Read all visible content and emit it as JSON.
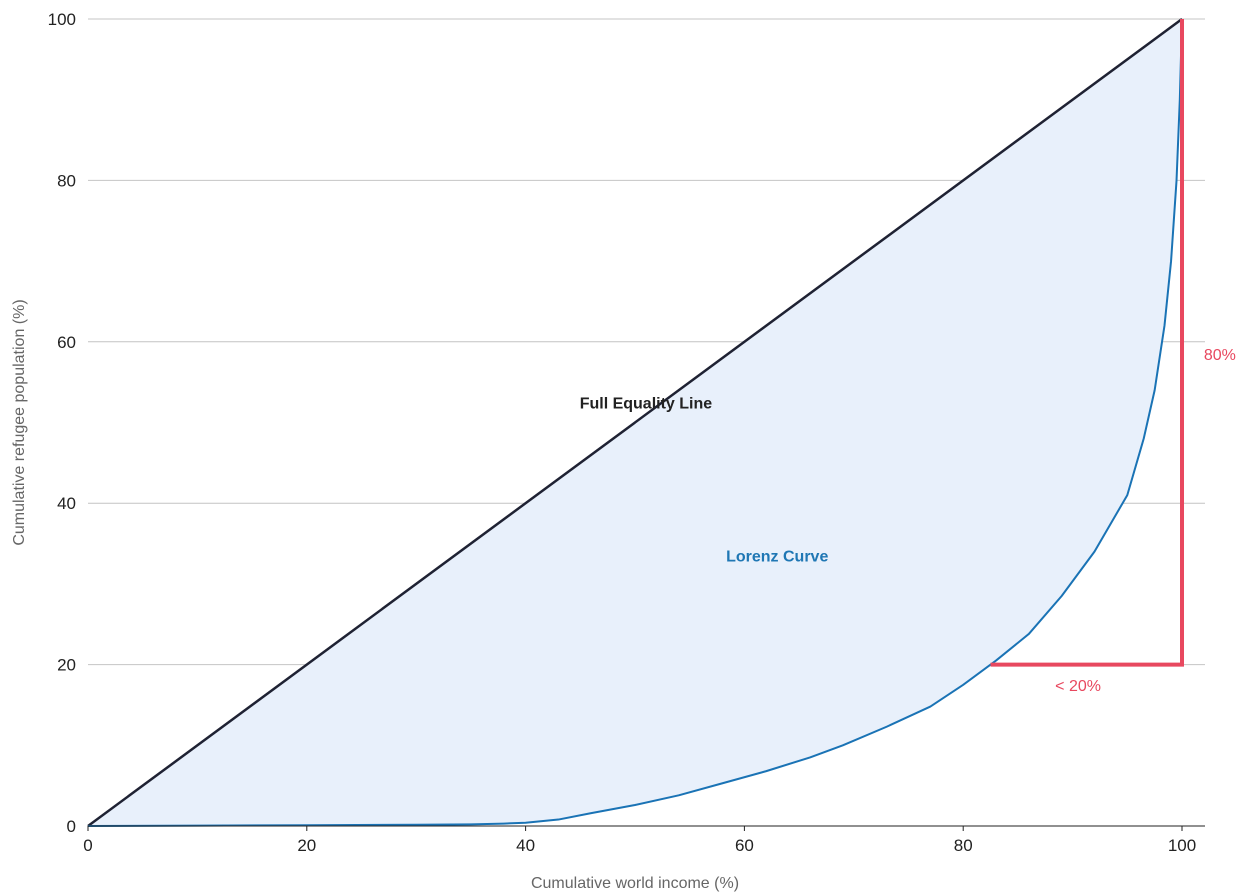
{
  "chart_data": {
    "type": "line",
    "xlabel": "Cumulative world income (%)",
    "ylabel": "Cumulative refugee population (%)",
    "xlim": [
      0,
      100
    ],
    "ylim": [
      0,
      100
    ],
    "x_ticks": [
      "0",
      "20",
      "40",
      "60",
      "80",
      "100"
    ],
    "y_ticks": [
      "0",
      "20",
      "40",
      "60",
      "80",
      "100"
    ],
    "grid": "horizontal",
    "series": [
      {
        "color": "#1f2233",
        "points": [
          [
            0,
            0
          ],
          [
            100,
            100
          ]
        ]
      },
      {
        "color": "#1a73b5",
        "fill": "#e8f0fb",
        "points": [
          [
            0,
            0
          ],
          [
            10,
            0.05
          ],
          [
            20,
            0.1
          ],
          [
            30,
            0.15
          ],
          [
            35,
            0.2
          ],
          [
            38,
            0.3
          ],
          [
            40,
            0.4
          ],
          [
            43,
            0.8
          ],
          [
            46,
            1.6
          ],
          [
            50,
            2.6
          ],
          [
            54,
            3.8
          ],
          [
            58,
            5.3
          ],
          [
            62,
            6.8
          ],
          [
            66,
            8.5
          ],
          [
            69,
            10.0
          ],
          [
            73,
            12.3
          ],
          [
            77,
            14.8
          ],
          [
            80,
            17.5
          ],
          [
            83,
            20.5
          ],
          [
            86,
            23.8
          ],
          [
            89,
            28.5
          ],
          [
            92,
            34.0
          ],
          [
            95,
            41.0
          ],
          [
            96.5,
            48.0
          ],
          [
            97.5,
            54.0
          ],
          [
            98.4,
            62.0
          ],
          [
            99.0,
            70.0
          ],
          [
            99.5,
            80.0
          ],
          [
            99.8,
            90.0
          ],
          [
            100,
            100
          ]
        ]
      }
    ],
    "annotations": [
      {
        "text": "Full Equality Line",
        "x": 51,
        "y": 52.5
      },
      {
        "text": "Lorenz Curve",
        "x": 63,
        "y": 33.5
      },
      {
        "text": "80%",
        "x": 102,
        "y": 58.5
      },
      {
        "text": "< 20%",
        "x": 90.5,
        "y": 17.5
      }
    ],
    "bracket": {
      "color": "#e8485f",
      "points": [
        [
          82.5,
          20
        ],
        [
          100,
          20
        ],
        [
          100,
          100
        ]
      ]
    }
  }
}
